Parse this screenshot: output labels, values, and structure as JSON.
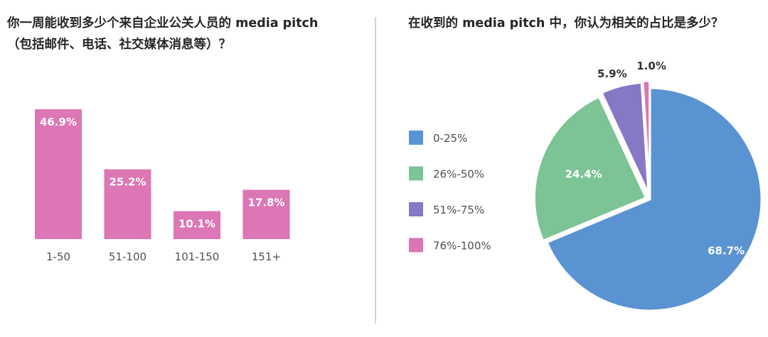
{
  "chart_data": [
    {
      "type": "bar",
      "title_line1": "你一周能收到多少个来自企业公关人员的 media pitch",
      "title_line2": "（包括邮件、电话、社交媒体消息等）？",
      "categories": [
        "1-50",
        "51-100",
        "101-150",
        "151+"
      ],
      "values": [
        46.9,
        25.2,
        10.1,
        17.8
      ],
      "value_labels": [
        "46.9%",
        "25.2%",
        "10.1%",
        "17.8%"
      ],
      "unit": "%",
      "ylim": [
        0,
        46.9
      ],
      "bar_color": "#dc76b4",
      "grid": false
    },
    {
      "type": "pie",
      "title": "在收到的 media pitch 中，你认为相关的占比是多少？",
      "legend_position": "left",
      "slices": [
        {
          "label": "0-25%",
          "value": 68.7,
          "value_label": "68.7%",
          "color": "#5a93d2"
        },
        {
          "label": "26%-50%",
          "value": 24.4,
          "value_label": "24.4%",
          "color": "#7cc396"
        },
        {
          "label": "51%-75%",
          "value": 5.9,
          "value_label": "5.9%",
          "color": "#8578c5"
        },
        {
          "label": "76%-100%",
          "value": 1.0,
          "value_label": "1.0%",
          "color": "#dc76b4"
        }
      ]
    }
  ]
}
